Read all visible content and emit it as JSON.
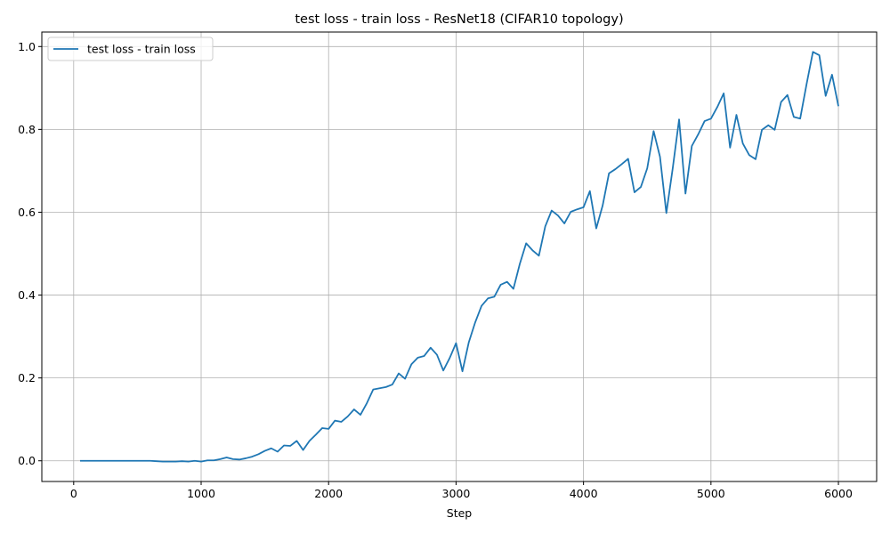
{
  "chart_data": {
    "type": "line",
    "title": "test loss - train loss - ResNet18 (CIFAR10 topology)",
    "xlabel": "Step",
    "ylabel": "",
    "xlim": [
      -250,
      6300
    ],
    "ylim": [
      -0.05,
      1.035
    ],
    "xticks": [
      0,
      1000,
      2000,
      3000,
      4000,
      5000,
      6000
    ],
    "yticks": [
      0.0,
      0.2,
      0.4,
      0.6,
      0.8,
      1.0
    ],
    "xtick_labels": [
      "0",
      "1000",
      "2000",
      "3000",
      "4000",
      "5000",
      "6000"
    ],
    "ytick_labels": [
      "0.0",
      "0.2",
      "0.4",
      "0.6",
      "0.8",
      "1.0"
    ],
    "grid": true,
    "legend_position": "top-left",
    "color": "#1f77b4",
    "series": [
      {
        "name": "test loss - train loss",
        "x": [
          50,
          100,
          150,
          200,
          250,
          300,
          350,
          400,
          450,
          500,
          550,
          600,
          650,
          700,
          750,
          800,
          850,
          900,
          950,
          1000,
          1050,
          1100,
          1150,
          1200,
          1250,
          1300,
          1350,
          1400,
          1450,
          1500,
          1550,
          1600,
          1650,
          1700,
          1750,
          1800,
          1850,
          1900,
          1950,
          2000,
          2050,
          2100,
          2150,
          2200,
          2250,
          2300,
          2350,
          2400,
          2450,
          2500,
          2550,
          2600,
          2650,
          2700,
          2750,
          2800,
          2850,
          2900,
          2950,
          3000,
          3050,
          3100,
          3150,
          3200,
          3250,
          3300,
          3350,
          3400,
          3450,
          3500,
          3550,
          3600,
          3650,
          3700,
          3750,
          3800,
          3850,
          3900,
          3950,
          4000,
          4050,
          4100,
          4150,
          4200,
          4250,
          4300,
          4350,
          4400,
          4450,
          4500,
          4550,
          4600,
          4650,
          4700,
          4750,
          4800,
          4850,
          4900,
          4950,
          5000,
          5050,
          5100,
          5150,
          5200,
          5250,
          5300,
          5350,
          5400,
          5450,
          5500,
          5550,
          5600,
          5650,
          5700,
          5750,
          5800,
          5850,
          5900,
          5950,
          6000
        ],
        "y": [
          0.0,
          0.0,
          0.0,
          0.0,
          0.0,
          0.0,
          0.0,
          0.0,
          0.0,
          0.0,
          0.0,
          0.0,
          -0.001,
          -0.002,
          -0.002,
          -0.002,
          -0.001,
          -0.002,
          0.0,
          -0.002,
          0.001,
          0.001,
          0.004,
          0.008,
          0.004,
          0.003,
          0.006,
          0.01,
          0.016,
          0.024,
          0.03,
          0.022,
          0.037,
          0.036,
          0.048,
          0.026,
          0.048,
          0.063,
          0.079,
          0.077,
          0.097,
          0.094,
          0.107,
          0.124,
          0.111,
          0.139,
          0.172,
          0.175,
          0.178,
          0.184,
          0.211,
          0.198,
          0.233,
          0.249,
          0.253,
          0.273,
          0.256,
          0.218,
          0.248,
          0.284,
          0.216,
          0.286,
          0.334,
          0.374,
          0.392,
          0.396,
          0.425,
          0.432,
          0.415,
          0.475,
          0.525,
          0.508,
          0.495,
          0.566,
          0.604,
          0.592,
          0.573,
          0.601,
          0.607,
          0.612,
          0.651,
          0.561,
          0.616,
          0.694,
          0.704,
          0.716,
          0.729,
          0.648,
          0.661,
          0.706,
          0.796,
          0.734,
          0.598,
          0.706,
          0.824,
          0.645,
          0.76,
          0.788,
          0.82,
          0.826,
          0.854,
          0.887,
          0.756,
          0.835,
          0.766,
          0.738,
          0.728,
          0.799,
          0.81,
          0.799,
          0.866,
          0.883,
          0.83,
          0.826,
          0.909,
          0.987,
          0.979,
          0.881,
          0.932,
          0.856
        ]
      }
    ]
  }
}
